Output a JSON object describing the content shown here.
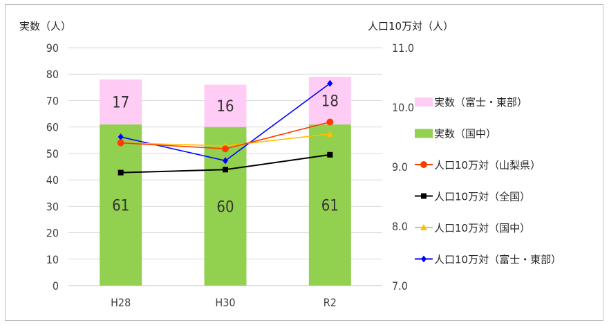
{
  "chart_data": {
    "type": "bar",
    "categories": [
      "H28",
      "H30",
      "R2"
    ],
    "ylabel_left": "実数（人）",
    "ylabel_right": "人口10万対（人）",
    "ylim_left": [
      0,
      90
    ],
    "ylim_right": [
      7.0,
      11.0
    ],
    "yticks_left": [
      "0",
      "10",
      "20",
      "30",
      "40",
      "50",
      "60",
      "70",
      "80",
      "90"
    ],
    "yticks_right": [
      "7.0",
      "8.0",
      "9.0",
      "10.0",
      "11.0"
    ],
    "grid": true,
    "legend_position": "right",
    "bar_series": [
      {
        "name": "実数（国中）",
        "values": [
          61,
          60,
          61
        ],
        "color": "#92d050"
      },
      {
        "name": "実数（富士・東部）",
        "values": [
          17,
          16,
          18
        ],
        "color": "#ffccf5"
      }
    ],
    "line_series": [
      {
        "name": "人口10万対（山梨県）",
        "values": [
          9.4,
          9.3,
          9.75
        ],
        "color": "#ff3b00",
        "marker": "circle"
      },
      {
        "name": "人口10万対（全国）",
        "values": [
          8.9,
          8.95,
          9.2
        ],
        "color": "#000000",
        "marker": "square"
      },
      {
        "name": "人口10万対（国中）",
        "values": [
          9.4,
          9.35,
          9.55
        ],
        "color": "#ffc000",
        "marker": "triangle"
      },
      {
        "name": "人口10万対（富士・東部）",
        "values": [
          9.5,
          9.1,
          10.4
        ],
        "color": "#0000ff",
        "marker": "diamond"
      }
    ],
    "legend_order": [
      "実数（富士・東部）",
      "実数（国中）",
      "人口10万対（山梨県）",
      "人口10万対（全国）",
      "人口10万対（国中）",
      "人口10万対（富士・東部）"
    ]
  }
}
